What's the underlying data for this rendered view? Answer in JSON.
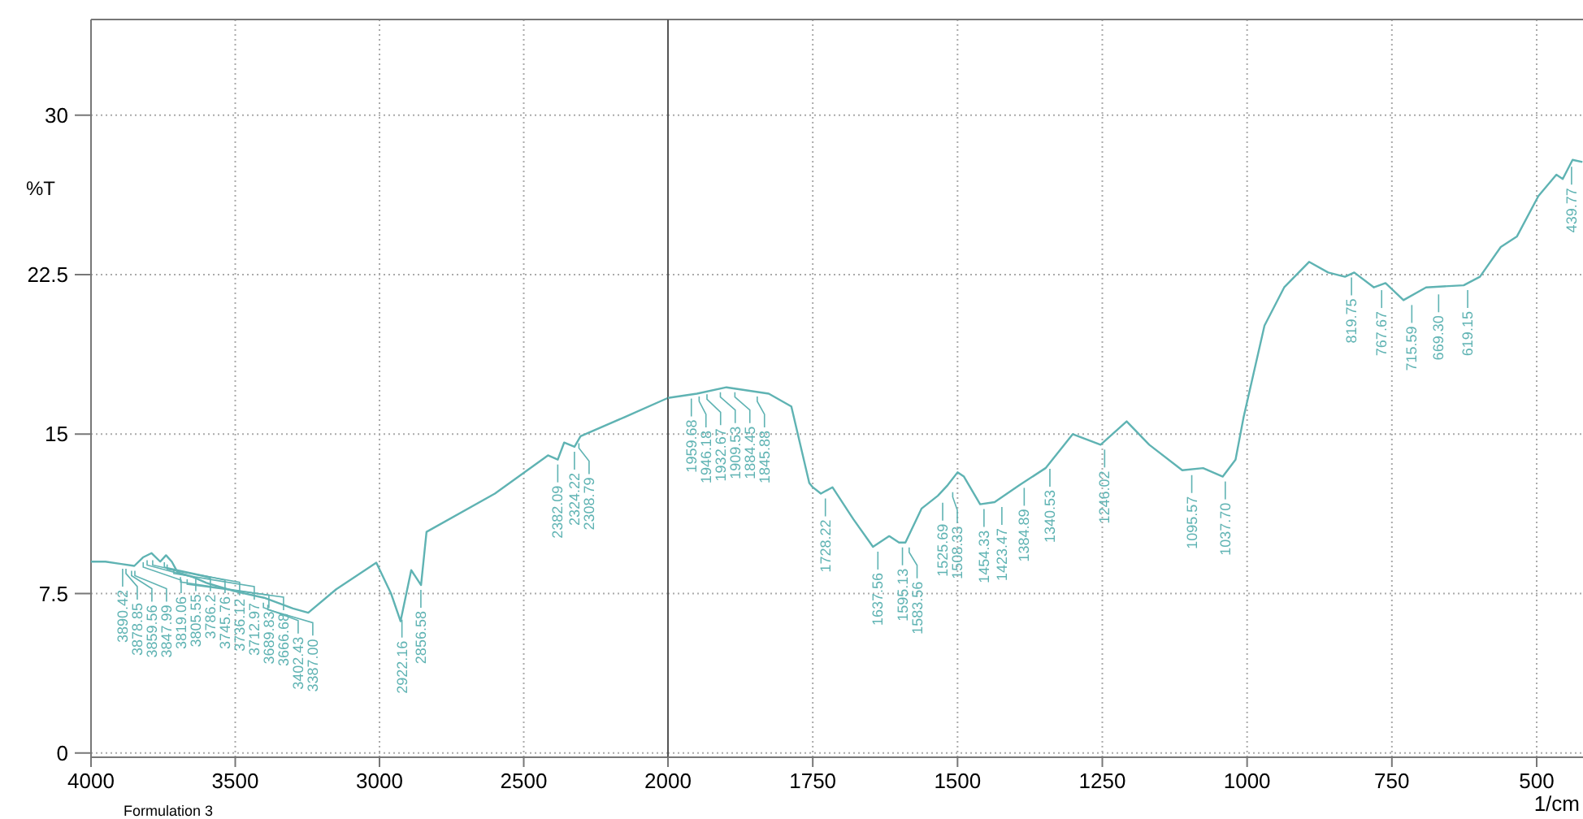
{
  "chart_data": [
    {
      "type": "line",
      "ylabel": "%T",
      "x": [
        4000,
        3950,
        3900,
        3850,
        3820,
        3790,
        3760,
        3740,
        3720,
        3700,
        3650,
        3600,
        3500,
        3400,
        3300,
        3247,
        3150,
        3011,
        2960,
        2927,
        2890,
        2856,
        2837,
        2600,
        2416,
        2382,
        2360,
        2324,
        2303,
        2150,
        2000
      ],
      "series": [
        {
          "color": "#5fb3b3",
          "values": [
            9.0,
            9.0,
            8.9,
            8.8,
            9.2,
            9.4,
            9.0,
            9.3,
            9.0,
            8.5,
            8.3,
            8.0,
            7.6,
            7.3,
            6.8,
            6.6,
            7.7,
            8.95,
            7.5,
            6.2,
            8.6,
            7.9,
            10.4,
            12.2,
            14.0,
            13.8,
            14.6,
            14.4,
            14.9,
            15.8,
            16.7
          ]
        }
      ],
      "xlim": [
        4000,
        2000
      ],
      "xticks": [
        4000,
        3500,
        3000,
        2500,
        2000
      ],
      "ylim": [
        -0.2,
        34.5
      ],
      "yticks": [
        0,
        7.5,
        15,
        22.5,
        30
      ],
      "grid": true,
      "marker": "none",
      "line_style": "solid",
      "annotations": [
        {
          "text": "3890.42",
          "x": 3890.42,
          "y": 8.9
        },
        {
          "text": "3878.85",
          "x": 3878.85,
          "y": 8.9
        },
        {
          "text": "3859.56",
          "x": 3859.56,
          "y": 8.8
        },
        {
          "text": "3847.99",
          "x": 3847.99,
          "y": 8.8
        },
        {
          "text": "3819.06",
          "x": 3819.06,
          "y": 9.2
        },
        {
          "text": "3805.55",
          "x": 3805.55,
          "y": 9.3
        },
        {
          "text": "3786.2",
          "x": 3786.2,
          "y": 9.3
        },
        {
          "text": "3745.76",
          "x": 3745.76,
          "y": 9.2
        },
        {
          "text": "3736.12",
          "x": 3736.12,
          "y": 9.1
        },
        {
          "text": "3712.97",
          "x": 3712.97,
          "y": 8.9
        },
        {
          "text": "3689.83",
          "x": 3689.83,
          "y": 8.5
        },
        {
          "text": "3666.68",
          "x": 3666.68,
          "y": 8.4
        },
        {
          "text": "3402.43",
          "x": 3402.43,
          "y": 7.3
        },
        {
          "text": "3387.00",
          "x": 3387.0,
          "y": 7.2
        },
        {
          "text": "2922.16",
          "x": 2922.16,
          "y": 6.5
        },
        {
          "text": "2856.58",
          "x": 2856.58,
          "y": 7.9
        },
        {
          "text": "2382.09",
          "x": 2382.09,
          "y": 13.8
        },
        {
          "text": "2324.22",
          "x": 2324.22,
          "y": 14.4
        },
        {
          "text": "2308.79",
          "x": 2308.79,
          "y": 14.8
        },
        "Formulation 3"
      ]
    },
    {
      "type": "line",
      "xlabel": "1/cm",
      "tick_labels": "x",
      "x": [
        2000,
        1950,
        1899,
        1826,
        1787,
        1756,
        1750,
        1736,
        1716,
        1680,
        1646,
        1618,
        1601,
        1590,
        1562,
        1534,
        1517,
        1500,
        1489,
        1461,
        1436,
        1393,
        1348,
        1301,
        1253,
        1208,
        1169,
        1112,
        1076,
        1042,
        1020,
        1006,
        970,
        936,
        893,
        860,
        831,
        815,
        781,
        761,
        730,
        691,
        626,
        598,
        562,
        534,
        497,
        466,
        455,
        438,
        421
      ],
      "series": [
        {
          "color": "#5fb3b3",
          "values": [
            16.7,
            16.9,
            17.2,
            16.9,
            16.3,
            12.7,
            12.5,
            12.2,
            12.5,
            11.0,
            9.7,
            10.2,
            9.9,
            9.9,
            11.5,
            12.1,
            12.6,
            13.2,
            13.0,
            11.7,
            11.8,
            12.6,
            13.4,
            15.0,
            14.5,
            15.6,
            14.5,
            13.3,
            13.4,
            13.0,
            13.8,
            15.8,
            20.1,
            21.9,
            23.1,
            22.6,
            22.4,
            22.6,
            21.9,
            22.1,
            21.3,
            21.9,
            22.0,
            22.4,
            23.8,
            24.3,
            26.2,
            27.2,
            27.0,
            27.9,
            27.8
          ]
        }
      ],
      "xlim": [
        2000,
        420
      ],
      "xticks": [
        1750,
        1500,
        1250,
        1000,
        750,
        500
      ],
      "ylim": [
        -0.2,
        34.5
      ],
      "yticks": [
        0,
        7.5,
        15,
        22.5,
        30
      ],
      "grid": true,
      "marker": "none",
      "line_style": "solid",
      "annotations": [
        {
          "text": "1959.68",
          "x": 1959.68,
          "y": 16.9
        },
        {
          "text": "1946.18",
          "x": 1946.18,
          "y": 17.0
        },
        {
          "text": "1932.67",
          "x": 1932.67,
          "y": 17.1
        },
        {
          "text": "1909.53",
          "x": 1909.53,
          "y": 17.2
        },
        {
          "text": "1884.45",
          "x": 1884.45,
          "y": 17.2
        },
        {
          "text": "1845.88",
          "x": 1845.88,
          "y": 17.0
        },
        {
          "text": "1728.22",
          "x": 1728.22,
          "y": 12.2
        },
        {
          "text": "1637.56",
          "x": 1637.56,
          "y": 9.7
        },
        {
          "text": "1595.13",
          "x": 1595.13,
          "y": 9.9
        },
        {
          "text": "1583.56",
          "x": 1583.56,
          "y": 9.9
        },
        {
          "text": "1525.69",
          "x": 1525.69,
          "y": 12.0
        },
        {
          "text": "1508.33",
          "x": 1508.33,
          "y": 12.5
        },
        {
          "text": "1454.33",
          "x": 1454.33,
          "y": 11.7
        },
        {
          "text": "1423.47",
          "x": 1423.47,
          "y": 11.8
        },
        {
          "text": "1384.89",
          "x": 1384.89,
          "y": 12.7
        },
        {
          "text": "1340.53",
          "x": 1340.53,
          "y": 13.6
        },
        {
          "text": "1246.02",
          "x": 1246.02,
          "y": 14.5
        },
        {
          "text": "1095.57",
          "x": 1095.57,
          "y": 13.3
        },
        {
          "text": "1037.70",
          "x": 1037.7,
          "y": 13.0
        },
        {
          "text": "819.75",
          "x": 819.75,
          "y": 22.6
        },
        {
          "text": "767.67",
          "x": 767.67,
          "y": 22.0
        },
        {
          "text": "715.59",
          "x": 715.59,
          "y": 21.3
        },
        {
          "text": "669.30",
          "x": 669.3,
          "y": 21.8
        },
        {
          "text": "619.15",
          "x": 619.15,
          "y": 22.0
        },
        {
          "text": "439.77",
          "x": 439.77,
          "y": 27.8
        }
      ]
    }
  ]
}
